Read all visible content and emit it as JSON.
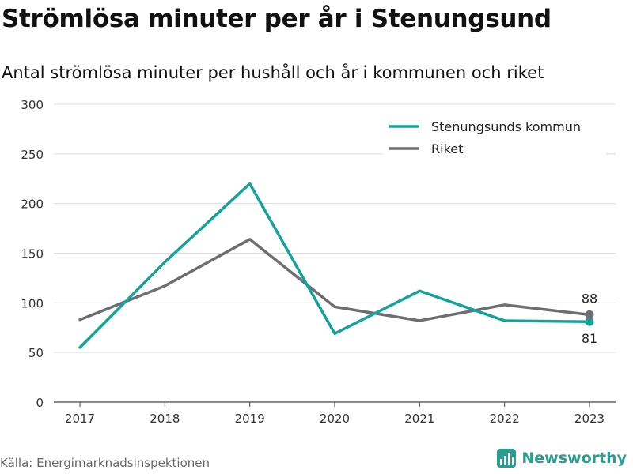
{
  "title": "Strömlösa minuter per år i Stenungsund",
  "subtitle": "Antal strömlösa minuter per hushåll och år i kommunen och riket",
  "source": "Källa: Energimarknadsinspektionen",
  "brand": {
    "name": "Newsworthy",
    "icon": "newsworthy-logo-icon",
    "color": "#2a9d8f"
  },
  "chart_data": {
    "type": "line",
    "categories": [
      "2017",
      "2018",
      "2019",
      "2020",
      "2021",
      "2022",
      "2023"
    ],
    "ylim": [
      0,
      300
    ],
    "yticks": [
      0,
      50,
      100,
      150,
      200,
      250,
      300
    ],
    "grid": true,
    "legend_position": "top-right",
    "series": [
      {
        "name": "Stenungsunds kommun",
        "color": "#12a39a",
        "values": [
          55,
          141,
          220,
          69,
          112,
          82,
          81
        ],
        "end_label": "81"
      },
      {
        "name": "Riket",
        "color": "#6e6d72",
        "values": [
          83,
          117,
          164,
          96,
          82,
          98,
          88
        ],
        "end_label": "88"
      }
    ]
  }
}
